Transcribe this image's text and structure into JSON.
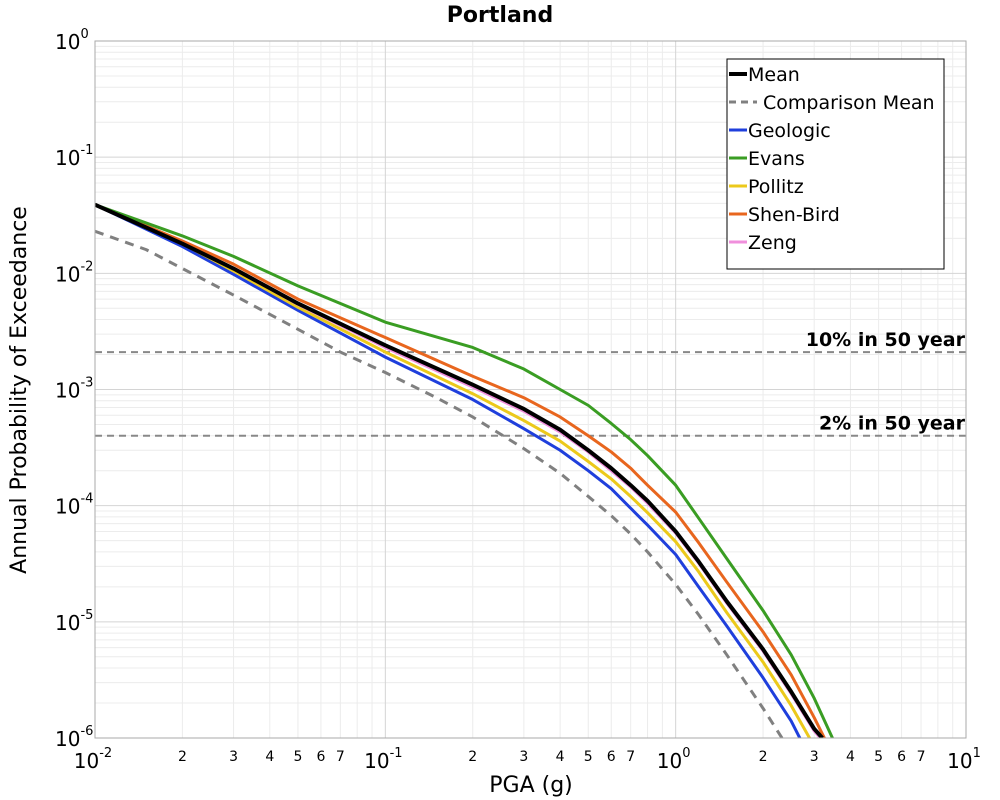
{
  "chart_data": {
    "type": "line",
    "title": "Portland",
    "xlabel": "PGA (g)",
    "ylabel": "Annual Probability of Exceedance",
    "xscale": "log",
    "yscale": "log",
    "xlim": [
      0.01,
      10
    ],
    "ylim": [
      1e-06,
      1
    ],
    "grid": true,
    "legend_position": "top-right",
    "x_major_ticks": [
      {
        "value": 0.01,
        "base": "10",
        "exp": "-2"
      },
      {
        "value": 0.1,
        "base": "10",
        "exp": "-1"
      },
      {
        "value": 1,
        "base": "10",
        "exp": "0"
      },
      {
        "value": 10,
        "base": "10",
        "exp": "1"
      }
    ],
    "y_major_ticks": [
      {
        "value": 1,
        "base": "10",
        "exp": "0"
      },
      {
        "value": 0.1,
        "base": "10",
        "exp": "-1"
      },
      {
        "value": 0.01,
        "base": "10",
        "exp": "-2"
      },
      {
        "value": 0.001,
        "base": "10",
        "exp": "-3"
      },
      {
        "value": 0.0001,
        "base": "10",
        "exp": "-4"
      },
      {
        "value": 1e-05,
        "base": "10",
        "exp": "-5"
      },
      {
        "value": 1e-06,
        "base": "10",
        "exp": "-6"
      }
    ],
    "x_minor_tick_labels": [
      "2",
      "3",
      "4",
      "5",
      "6",
      "7"
    ],
    "reference_lines": [
      {
        "label": "10% in 50 year",
        "y": 0.0021,
        "color": "#888888"
      },
      {
        "label": "2% in 50 year",
        "y": 0.0004,
        "color": "#888888"
      }
    ],
    "series": [
      {
        "name": "Mean",
        "color": "#000000",
        "style": "solid",
        "width": 4,
        "x": [
          0.01,
          0.02,
          0.03,
          0.05,
          0.1,
          0.2,
          0.3,
          0.4,
          0.5,
          0.6,
          0.7,
          0.8,
          1.0,
          1.2,
          1.5,
          2.0,
          2.5,
          3.0,
          3.2
        ],
        "y": [
          0.039,
          0.018,
          0.011,
          0.0055,
          0.0024,
          0.0011,
          0.00068,
          0.00045,
          0.0003,
          0.00021,
          0.00015,
          0.00011,
          6e-05,
          3.3e-05,
          1.5e-05,
          5.8e-06,
          2.5e-06,
          1.2e-06,
          1e-06
        ]
      },
      {
        "name": "Comparison Mean",
        "color": "#808080",
        "style": "dashed",
        "width": 3,
        "x": [
          0.01,
          0.015,
          0.02,
          0.03,
          0.05,
          0.07,
          0.1,
          0.15,
          0.2,
          0.3,
          0.4,
          0.5,
          0.6,
          0.7,
          0.8,
          1.0,
          1.2,
          1.5,
          2.0,
          2.5
        ],
        "y": [
          0.023,
          0.016,
          0.011,
          0.0065,
          0.0033,
          0.0021,
          0.0014,
          0.00085,
          0.00058,
          0.00031,
          0.00019,
          0.00012,
          8.2e-05,
          5.7e-05,
          4e-05,
          2.1e-05,
          1.15e-05,
          5.2e-06,
          1.8e-06,
          7.5e-07
        ]
      },
      {
        "name": "Geologic",
        "color": "#1f3fdc",
        "style": "solid",
        "width": 3,
        "x": [
          0.01,
          0.02,
          0.03,
          0.05,
          0.1,
          0.2,
          0.3,
          0.4,
          0.5,
          0.6,
          0.7,
          0.8,
          1.0,
          1.2,
          1.5,
          2.0,
          2.5,
          2.8
        ],
        "y": [
          0.039,
          0.017,
          0.0098,
          0.0048,
          0.0019,
          0.00082,
          0.00046,
          0.0003,
          0.0002,
          0.00014,
          9.5e-05,
          6.8e-05,
          3.8e-05,
          2e-05,
          9.2e-06,
          3.3e-06,
          1.4e-06,
          8e-07
        ]
      },
      {
        "name": "Evans",
        "color": "#3a9d23",
        "style": "solid",
        "width": 3,
        "x": [
          0.01,
          0.02,
          0.03,
          0.05,
          0.1,
          0.2,
          0.3,
          0.4,
          0.5,
          0.6,
          0.7,
          0.8,
          1.0,
          1.2,
          1.5,
          2.0,
          2.5,
          3.0,
          3.5
        ],
        "y": [
          0.039,
          0.021,
          0.014,
          0.0078,
          0.0038,
          0.0023,
          0.0015,
          0.001,
          0.00073,
          0.00051,
          0.00037,
          0.00027,
          0.00015,
          7.8e-05,
          3.5e-05,
          1.25e-05,
          5.2e-06,
          2.2e-06,
          9.5e-07
        ]
      },
      {
        "name": "Pollitz",
        "color": "#ecc91b",
        "style": "solid",
        "width": 3,
        "x": [
          0.01,
          0.02,
          0.03,
          0.05,
          0.1,
          0.2,
          0.3,
          0.4,
          0.5,
          0.6,
          0.7,
          0.8,
          1.0,
          1.2,
          1.5,
          2.0,
          2.5,
          3.0
        ],
        "y": [
          0.039,
          0.018,
          0.0105,
          0.0051,
          0.0021,
          0.00092,
          0.00054,
          0.00036,
          0.00024,
          0.00017,
          0.00012,
          8.7e-05,
          4.9e-05,
          2.7e-05,
          1.2e-05,
          4.5e-06,
          1.9e-06,
          8.5e-07
        ]
      },
      {
        "name": "Shen-Bird",
        "color": "#e8661e",
        "style": "solid",
        "width": 3,
        "x": [
          0.01,
          0.02,
          0.03,
          0.05,
          0.1,
          0.2,
          0.3,
          0.4,
          0.5,
          0.6,
          0.7,
          0.8,
          1.0,
          1.2,
          1.5,
          2.0,
          2.5,
          3.0,
          3.4
        ],
        "y": [
          0.039,
          0.019,
          0.012,
          0.006,
          0.0028,
          0.0013,
          0.00085,
          0.00058,
          0.0004,
          0.00029,
          0.00021,
          0.00015,
          8.8e-05,
          4.8e-05,
          2.2e-05,
          8.2e-06,
          3.5e-06,
          1.5e-06,
          8e-07
        ]
      },
      {
        "name": "Zeng",
        "color": "#f08fdc",
        "style": "solid",
        "width": 3,
        "x": [
          0.01,
          0.02,
          0.03,
          0.05,
          0.1,
          0.2,
          0.3,
          0.4,
          0.5,
          0.6,
          0.7,
          0.8,
          1.0,
          1.2,
          1.5,
          2.0,
          2.5,
          3.0,
          3.2
        ],
        "y": [
          0.039,
          0.018,
          0.011,
          0.0054,
          0.0023,
          0.00105,
          0.00065,
          0.00043,
          0.00029,
          0.0002,
          0.000145,
          0.000105,
          5.8e-05,
          3.2e-05,
          1.45e-05,
          5.6e-06,
          2.4e-06,
          1.15e-06,
          9.5e-07
        ]
      }
    ]
  }
}
